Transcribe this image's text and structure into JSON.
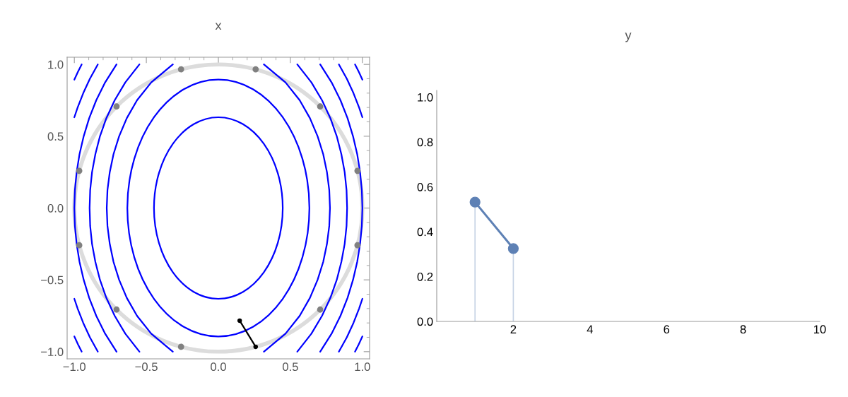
{
  "chart_data": [
    {
      "type": "line",
      "title": "x",
      "xlim": [
        -1.05,
        1.05
      ],
      "ylim": [
        -1.05,
        1.05
      ],
      "xticks": [
        {
          "value": -1,
          "label": "−1.0"
        },
        {
          "value": -0.5,
          "label": "−0.5"
        },
        {
          "value": 0,
          "label": "0.0"
        },
        {
          "value": 0.5,
          "label": "0.5"
        },
        {
          "value": 1,
          "label": "1.0"
        }
      ],
      "yticks": [
        {
          "value": -1,
          "label": "−1.0"
        },
        {
          "value": -0.5,
          "label": "−0.5"
        },
        {
          "value": 0,
          "label": "0.0"
        },
        {
          "value": 0.5,
          "label": "0.5"
        },
        {
          "value": 1,
          "label": "1.0"
        }
      ],
      "series": [
        {
          "color": "#0000ff",
          "x": [
            0.316,
            0.466,
            0.565,
            0.636,
            0.689,
            0.728,
            0.754,
            0.77,
            0.775,
            0.77,
            0.754,
            0.728,
            0.689,
            0.636,
            0.565,
            0.466,
            0.316
          ],
          "values": [
            -1,
            -0.875,
            -0.75,
            -0.625,
            -0.5,
            -0.375,
            -0.25,
            -0.125,
            0,
            0.125,
            0.25,
            0.375,
            0.5,
            0.625,
            0.75,
            0.875,
            1
          ]
        },
        {
          "color": "#0000ff",
          "x": [
            -0.316,
            -0.466,
            -0.565,
            -0.636,
            -0.689,
            -0.728,
            -0.754,
            -0.77,
            -0.775,
            -0.77,
            -0.754,
            -0.728,
            -0.689,
            -0.636,
            -0.565,
            -0.466,
            -0.316
          ],
          "values": [
            -1,
            -0.875,
            -0.75,
            -0.625,
            -0.5,
            -0.375,
            -0.25,
            -0.125,
            0,
            0.125,
            0.25,
            0.375,
            0.5,
            0.625,
            0.75,
            0.875,
            1
          ]
        },
        {
          "color": "#0000ff",
          "x": [
            0.548,
            0.646,
            0.72,
            0.778,
            0.822,
            0.854,
            0.877,
            0.89,
            0.894,
            0.89,
            0.877,
            0.854,
            0.822,
            0.778,
            0.72,
            0.646,
            0.548
          ],
          "values": [
            -1,
            -0.875,
            -0.75,
            -0.625,
            -0.5,
            -0.375,
            -0.25,
            -0.125,
            0,
            0.125,
            0.25,
            0.375,
            0.5,
            0.625,
            0.75,
            0.875,
            1
          ]
        },
        {
          "color": "#0000ff",
          "x": [
            -0.548,
            -0.646,
            -0.72,
            -0.778,
            -0.822,
            -0.854,
            -0.877,
            -0.89,
            -0.894,
            -0.89,
            -0.877,
            -0.854,
            -0.822,
            -0.778,
            -0.72,
            -0.646,
            -0.548
          ],
          "values": [
            -1,
            -0.875,
            -0.75,
            -0.625,
            -0.5,
            -0.375,
            -0.25,
            -0.125,
            0,
            0.125,
            0.25,
            0.375,
            0.5,
            0.625,
            0.75,
            0.875,
            1
          ]
        },
        {
          "color": "#0000ff",
          "x": [
            0.707,
            0.786,
            0.848,
            0.897,
            0.935,
            0.964,
            0.984,
            0.996,
            1,
            0.996,
            0.984,
            0.964,
            0.935,
            0.897,
            0.848,
            0.786,
            0.707
          ],
          "values": [
            -1,
            -0.875,
            -0.75,
            -0.625,
            -0.5,
            -0.375,
            -0.25,
            -0.125,
            0,
            0.125,
            0.25,
            0.375,
            0.5,
            0.625,
            0.75,
            0.875,
            1
          ]
        },
        {
          "color": "#0000ff",
          "x": [
            -0.707,
            -0.786,
            -0.848,
            -0.897,
            -0.935,
            -0.964,
            -0.984,
            -0.996,
            -1,
            -0.996,
            -0.984,
            -0.964,
            -0.935,
            -0.897,
            -0.848,
            -0.786,
            -0.707
          ],
          "values": [
            -1,
            -0.875,
            -0.75,
            -0.625,
            -0.5,
            -0.375,
            -0.25,
            -0.125,
            0,
            0.125,
            0.25,
            0.375,
            0.5,
            0.625,
            0.75,
            0.875,
            1
          ]
        },
        {
          "color": "#0000ff",
          "x": [
            1,
            0.977,
            0.938,
            0.892,
            0.837
          ],
          "values": [
            0.632,
            0.7,
            0.8,
            0.9,
            1
          ]
        },
        {
          "color": "#0000ff",
          "x": [
            -1,
            -0.977,
            -0.938,
            -0.892,
            -0.837
          ],
          "values": [
            0.632,
            0.7,
            0.8,
            0.9,
            1
          ]
        },
        {
          "color": "#0000ff",
          "x": [
            1,
            0.977,
            0.938,
            0.892,
            0.837
          ],
          "values": [
            -0.632,
            -0.7,
            -0.8,
            -0.9,
            -1
          ]
        },
        {
          "color": "#0000ff",
          "x": [
            -1,
            -0.977,
            -0.938,
            -0.892,
            -0.837
          ],
          "values": [
            -0.632,
            -0.7,
            -0.8,
            -0.9,
            -1
          ]
        },
        {
          "color": "#0000ff",
          "x": [
            1,
            0.974,
            0.949
          ],
          "values": [
            0.894,
            0.95,
            1
          ]
        },
        {
          "color": "#0000ff",
          "x": [
            -1,
            -0.974,
            -0.949
          ],
          "values": [
            0.894,
            0.95,
            1
          ]
        },
        {
          "color": "#0000ff",
          "x": [
            1,
            0.974,
            0.949
          ],
          "values": [
            -0.894,
            -0.95,
            -1
          ]
        },
        {
          "color": "#0000ff",
          "x": [
            -1,
            -0.974,
            -0.949
          ],
          "values": [
            -0.894,
            -0.95,
            -1
          ]
        },
        {
          "type": "scatter",
          "color": "#808080",
          "x": [
            0.966,
            0.707,
            0.259,
            -0.259,
            -0.707,
            -0.966,
            -0.966,
            -0.707,
            -0.259,
            0.259,
            0.707,
            0.966
          ],
          "values": [
            0.259,
            0.707,
            0.966,
            0.966,
            0.707,
            0.259,
            -0.259,
            -0.707,
            -0.966,
            null,
            -0.707,
            -0.259
          ]
        },
        {
          "color": "#000000",
          "x": [
            0.148,
            0.259
          ],
          "values": [
            -0.784,
            -0.966
          ]
        },
        {
          "type": "scatter",
          "color": "#000000",
          "x": [
            0.148,
            0.259
          ],
          "values": [
            -0.784,
            -0.966
          ]
        }
      ]
    },
    {
      "type": "line",
      "title": "y",
      "xlim": [
        0,
        10
      ],
      "ylim": [
        0,
        1.03
      ],
      "xticks": [
        2,
        4,
        6,
        8,
        10
      ],
      "yticks": [
        {
          "value": 0,
          "label": "0.0"
        },
        {
          "value": 0.2,
          "label": "0.2"
        },
        {
          "value": 0.4,
          "label": "0.4"
        },
        {
          "value": 0.6,
          "label": "0.6"
        },
        {
          "value": 0.8,
          "label": "0.8"
        },
        {
          "value": 1,
          "label": "1.0"
        }
      ],
      "series": [
        {
          "type": "lollipop",
          "color": "#5e81b5",
          "x": [
            1,
            2
          ],
          "values": [
            0.532,
            0.325
          ]
        },
        {
          "color": "#5e81b5",
          "x": [
            1,
            2
          ],
          "values": [
            0.532,
            0.325
          ]
        }
      ]
    }
  ]
}
